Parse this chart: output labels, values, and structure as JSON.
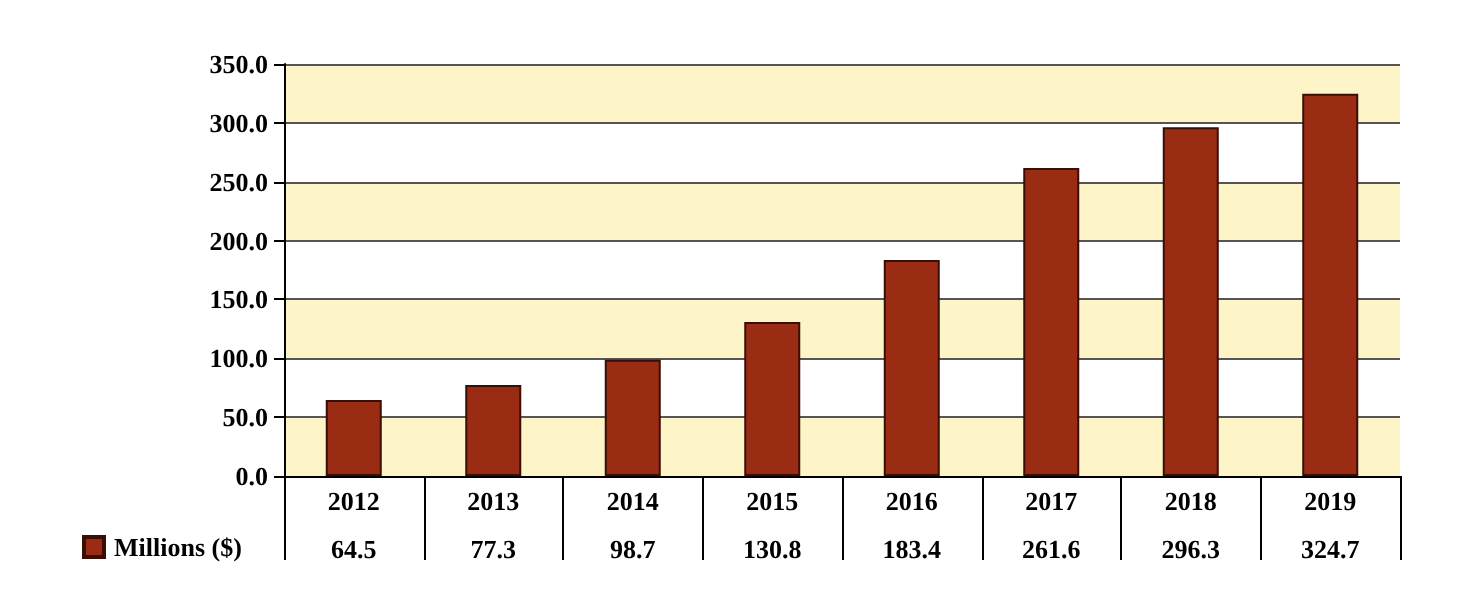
{
  "chart_data": {
    "type": "bar",
    "categories": [
      "2012",
      "2013",
      "2014",
      "2015",
      "2016",
      "2017",
      "2018",
      "2019"
    ],
    "series": [
      {
        "name": "Millions ($)",
        "color": "#9b2c14",
        "values": [
          64.5,
          77.3,
          98.7,
          130.8,
          183.4,
          261.6,
          296.3,
          324.7
        ]
      }
    ],
    "ylim": [
      0,
      350
    ],
    "yticks": [
      {
        "value": 0,
        "label": "0.0"
      },
      {
        "value": 50,
        "label": "50.0"
      },
      {
        "value": 100,
        "label": "100.0"
      },
      {
        "value": 150,
        "label": "150.0"
      },
      {
        "value": 200,
        "label": "200.0"
      },
      {
        "value": 250,
        "label": "250.0"
      },
      {
        "value": 300,
        "label": "300.0"
      },
      {
        "value": 350,
        "label": "350.0"
      }
    ],
    "bands": [
      {
        "axis": "y",
        "from": 0,
        "to": 50,
        "color": "#fdf5c8"
      },
      {
        "axis": "y",
        "from": 100,
        "to": 150,
        "color": "#fdf5c8"
      },
      {
        "axis": "y",
        "from": 200,
        "to": 250,
        "color": "#fdf5c8"
      },
      {
        "axis": "y",
        "from": 300,
        "to": 350,
        "color": "#fdf5c8"
      }
    ],
    "grid": "y",
    "legend": "bottom left",
    "data_labels": true
  }
}
